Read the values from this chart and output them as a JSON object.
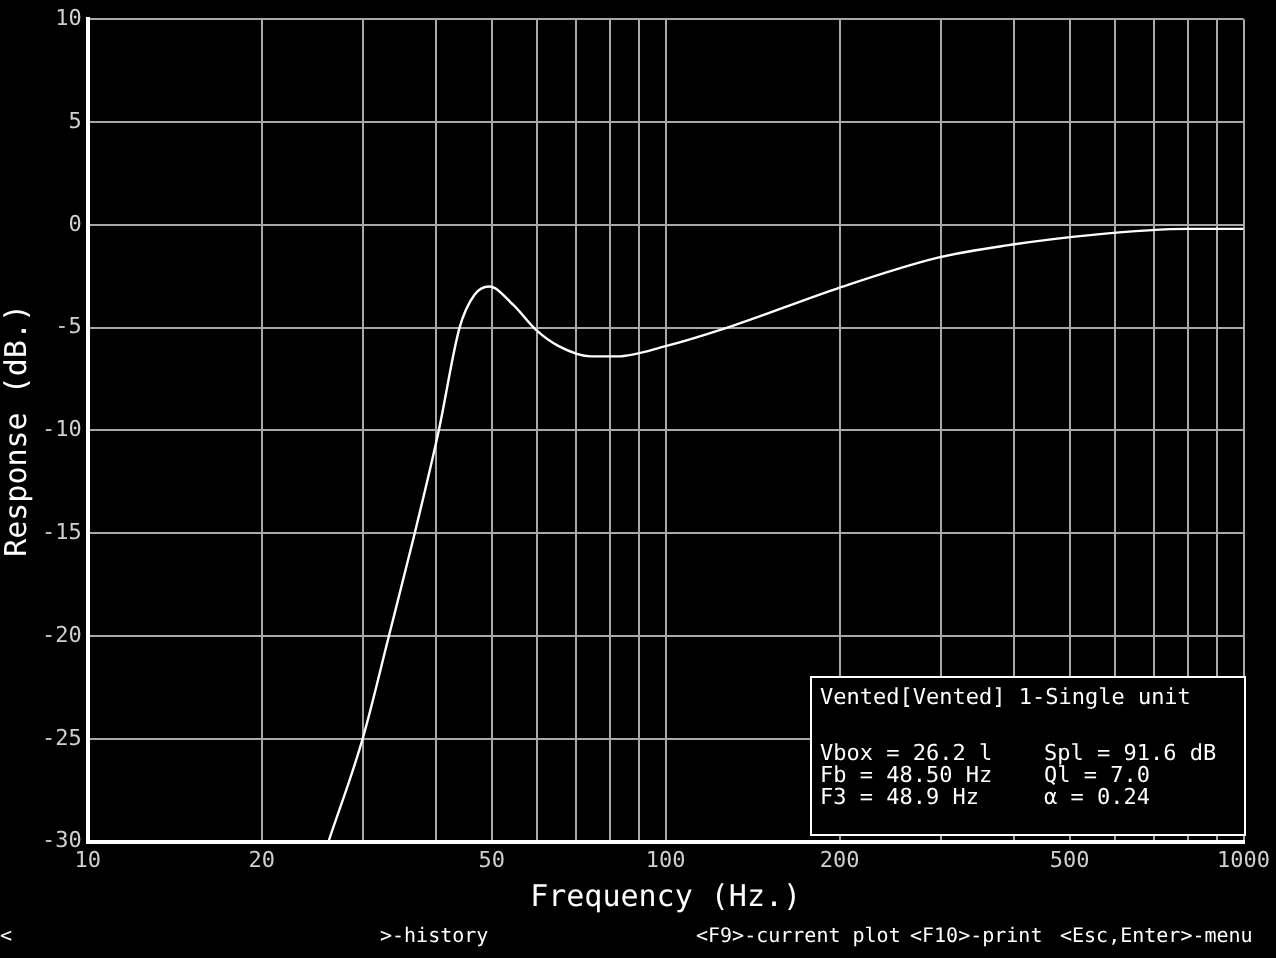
{
  "chart_data": {
    "type": "line",
    "xlabel": "Frequency (Hz.)",
    "ylabel": "Response (dB.)",
    "x": [
      26.1,
      29.9,
      33.2,
      36.8,
      40.5,
      44.0,
      46.7,
      49.5,
      54.5,
      59.6,
      65.3,
      74.3,
      82.4,
      100,
      131,
      198,
      296,
      390,
      543,
      802,
      1000
    ],
    "series": [
      {
        "color": "#ffffff",
        "values": [
          -30,
          -25,
          -20,
          -15,
          -10,
          -5,
          -3.4,
          -3.0,
          -3.9,
          -5.1,
          -5.9,
          -6.4,
          -6.4,
          -5.9,
          -4.9,
          -3.1,
          -1.6,
          -1.0,
          -0.5,
          -0.2,
          -0.2
        ]
      }
    ],
    "log": "x",
    "xlim": [
      10,
      1000
    ],
    "xticks": [
      10,
      20,
      {
        "value": 30,
        "label": null
      },
      {
        "value": 40,
        "label": null
      },
      50,
      {
        "value": 60,
        "label": null
      },
      {
        "value": 70,
        "label": null
      },
      {
        "value": 80,
        "label": null
      },
      {
        "value": 90,
        "label": null
      },
      100,
      200,
      {
        "value": 300,
        "label": null
      },
      {
        "value": 400,
        "label": null
      },
      500,
      {
        "value": 600,
        "label": null
      },
      {
        "value": 700,
        "label": null
      },
      {
        "value": 800,
        "label": null
      },
      {
        "value": 900,
        "label": null
      },
      1000
    ],
    "ylim": [
      -30,
      10
    ],
    "yticks": [
      -30,
      -25,
      -20,
      -15,
      -10,
      -5,
      0,
      5,
      10
    ],
    "grid": true,
    "annotations": [
      "Vented[Vented] 1-Single unit",
      "Vbox = 26.2 l",
      "Fb = 48.50 Hz",
      "F3 = 48.9 Hz",
      "Spl = 91.6 dB",
      "Ql = 7.0",
      "α = 0.24",
      "<",
      ">-history",
      "<F9>-current plot",
      "<F10>-print",
      "<Esc,Enter>-menu"
    ]
  }
}
